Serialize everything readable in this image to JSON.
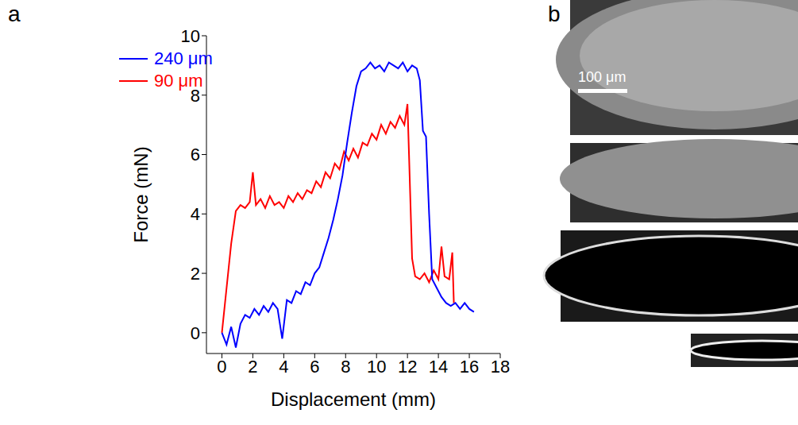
{
  "chart_data": {
    "type": "line",
    "panel_label": "a",
    "x_label": "Displacement (mm)",
    "y_label": "Force (mN)",
    "xlim": [
      -1,
      18
    ],
    "xticks": [
      0,
      2,
      4,
      6,
      8,
      10,
      12,
      14,
      16,
      18
    ],
    "ylim": [
      -0.7,
      10
    ],
    "yticks": [
      0,
      2,
      4,
      6,
      8,
      10
    ],
    "legend": "upper left",
    "series": [
      {
        "name": "90 μm",
        "color": "#ff0000",
        "x": [
          0,
          0.3,
          0.6,
          0.9,
          1.2,
          1.5,
          1.8,
          2.0,
          2.2,
          2.5,
          2.8,
          3.1,
          3.4,
          3.7,
          4.0,
          4.3,
          4.6,
          4.9,
          5.2,
          5.5,
          5.8,
          6.1,
          6.4,
          6.7,
          7.0,
          7.3,
          7.6,
          7.9,
          8.2,
          8.5,
          8.8,
          9.1,
          9.4,
          9.7,
          10.0,
          10.3,
          10.6,
          10.9,
          11.2,
          11.5,
          11.8,
          12.0,
          12.1,
          12.3,
          12.5,
          12.8,
          13.1,
          13.4,
          13.7,
          14.0,
          14.2,
          14.4,
          14.7,
          14.9,
          15.0
        ],
        "values": [
          0,
          1.5,
          3,
          4.1,
          4.3,
          4.2,
          4.4,
          5.4,
          4.3,
          4.5,
          4.2,
          4.6,
          4.3,
          4.4,
          4.2,
          4.6,
          4.4,
          4.7,
          4.5,
          4.8,
          4.7,
          5.1,
          4.9,
          5.4,
          5.2,
          5.7,
          5.5,
          6.1,
          5.8,
          6.2,
          5.9,
          6.4,
          6.3,
          6.7,
          6.5,
          7.0,
          6.7,
          7.1,
          6.9,
          7.3,
          7.0,
          7.7,
          6.0,
          2.5,
          1.9,
          1.8,
          2.0,
          1.7,
          2.1,
          1.8,
          2.9,
          1.9,
          1.8,
          2.7,
          1.0
        ]
      },
      {
        "name": "240 μm",
        "color": "#0000ff",
        "x": [
          0,
          0.3,
          0.6,
          0.9,
          1.2,
          1.5,
          1.8,
          2.1,
          2.4,
          2.7,
          3.0,
          3.3,
          3.6,
          3.9,
          4.2,
          4.5,
          4.8,
          5.1,
          5.4,
          5.7,
          6.0,
          6.3,
          6.6,
          6.9,
          7.2,
          7.5,
          7.8,
          8.1,
          8.4,
          8.7,
          9.0,
          9.3,
          9.6,
          9.9,
          10.2,
          10.5,
          10.8,
          11.1,
          11.4,
          11.7,
          12.0,
          12.3,
          12.6,
          12.8,
          13.0,
          13.2,
          13.4,
          13.6,
          13.9,
          14.2,
          14.5,
          14.8,
          15.1,
          15.4,
          15.7,
          16.0,
          16.3
        ],
        "values": [
          0,
          -0.4,
          0.2,
          -0.5,
          0.3,
          0.6,
          0.5,
          0.8,
          0.6,
          0.9,
          0.7,
          1.0,
          0.8,
          -0.2,
          1.1,
          1.0,
          1.4,
          1.3,
          1.7,
          1.6,
          2.0,
          2.2,
          2.7,
          3.2,
          3.8,
          4.5,
          5.3,
          6.4,
          7.4,
          8.3,
          8.8,
          8.9,
          9.1,
          8.9,
          9.0,
          8.8,
          9.1,
          9.0,
          8.9,
          9.1,
          8.8,
          9.0,
          8.9,
          8.5,
          6.8,
          6.6,
          4.0,
          1.8,
          1.5,
          1.2,
          1.0,
          0.9,
          1.0,
          0.8,
          1.0,
          0.8,
          0.7
        ]
      }
    ]
  },
  "image_panel": {
    "panel_label": "b",
    "scale_bar": "100 μm"
  }
}
